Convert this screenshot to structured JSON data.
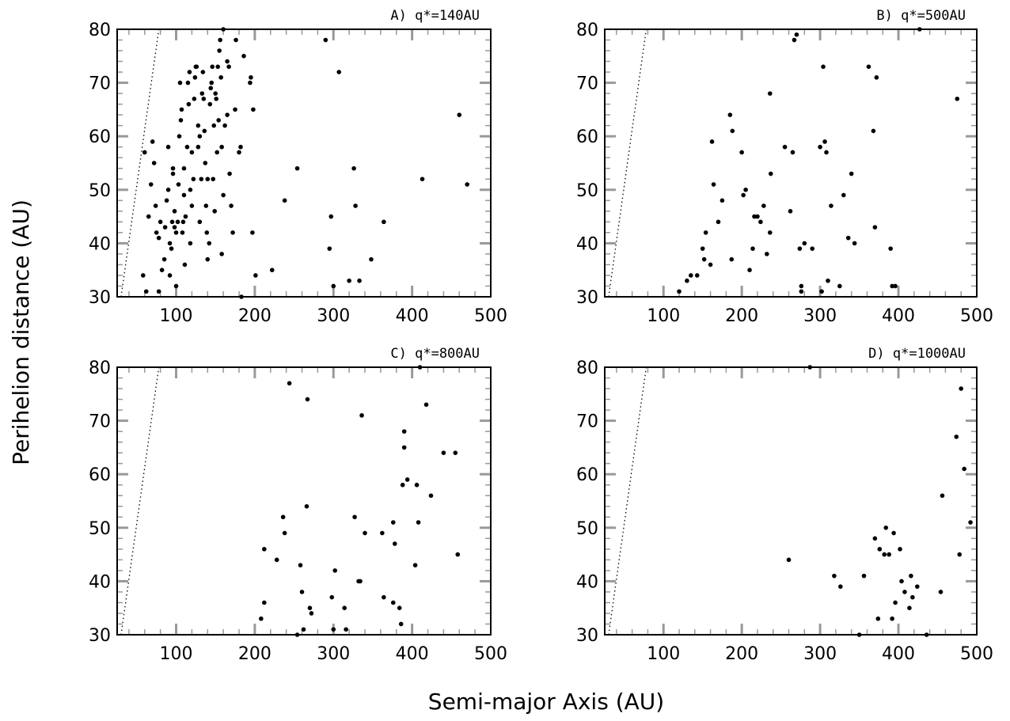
{
  "xlabel": "Semi-major Axis (AU)",
  "ylabel": "Perihelion distance (AU)",
  "chart_data": [
    {
      "type": "scatter",
      "title": "A) q*=140AU",
      "xlim": [
        25,
        500
      ],
      "ylim": [
        30,
        80
      ],
      "xticks": [
        "100",
        "200",
        "300",
        "400",
        "500"
      ],
      "yticks": [
        "30",
        "40",
        "50",
        "60",
        "70",
        "80"
      ],
      "reference_line": [
        [
          30,
          30
        ],
        [
          78,
          80
        ]
      ],
      "points": [
        [
          60,
          57
        ],
        [
          58,
          34
        ],
        [
          62,
          31
        ],
        [
          65,
          45
        ],
        [
          68,
          51
        ],
        [
          72,
          55
        ],
        [
          70,
          59
        ],
        [
          75,
          42
        ],
        [
          74,
          47
        ],
        [
          78,
          41
        ],
        [
          80,
          44
        ],
        [
          78,
          31
        ],
        [
          82,
          35
        ],
        [
          85,
          37
        ],
        [
          86,
          43
        ],
        [
          88,
          48
        ],
        [
          90,
          50
        ],
        [
          90,
          58
        ],
        [
          92,
          40
        ],
        [
          92,
          34
        ],
        [
          94,
          39
        ],
        [
          95,
          44
        ],
        [
          96,
          54
        ],
        [
          96,
          53
        ],
        [
          98,
          43
        ],
        [
          98,
          46
        ],
        [
          100,
          42
        ],
        [
          100,
          32
        ],
        [
          102,
          44
        ],
        [
          103,
          51
        ],
        [
          104,
          60
        ],
        [
          105,
          70
        ],
        [
          106,
          63
        ],
        [
          107,
          65
        ],
        [
          108,
          42
        ],
        [
          109,
          44
        ],
        [
          110,
          49
        ],
        [
          110,
          54
        ],
        [
          111,
          36
        ],
        [
          112,
          45
        ],
        [
          114,
          58
        ],
        [
          115,
          70
        ],
        [
          116,
          66
        ],
        [
          117,
          72
        ],
        [
          118,
          50
        ],
        [
          118,
          40
        ],
        [
          120,
          47
        ],
        [
          120,
          57
        ],
        [
          122,
          52
        ],
        [
          123,
          67
        ],
        [
          124,
          71
        ],
        [
          125,
          73
        ],
        [
          126,
          73
        ],
        [
          128,
          58
        ],
        [
          128,
          62
        ],
        [
          130,
          60
        ],
        [
          130,
          44
        ],
        [
          132,
          52
        ],
        [
          133,
          68
        ],
        [
          134,
          72
        ],
        [
          135,
          67
        ],
        [
          136,
          61
        ],
        [
          137,
          55
        ],
        [
          138,
          47
        ],
        [
          139,
          42
        ],
        [
          140,
          52
        ],
        [
          140,
          37
        ],
        [
          142,
          40
        ],
        [
          143,
          66
        ],
        [
          144,
          69
        ],
        [
          145,
          70
        ],
        [
          146,
          73
        ],
        [
          147,
          52
        ],
        [
          148,
          62
        ],
        [
          149,
          46
        ],
        [
          150,
          68
        ],
        [
          151,
          67
        ],
        [
          152,
          57
        ],
        [
          153,
          73
        ],
        [
          154,
          63
        ],
        [
          155,
          76
        ],
        [
          156,
          78
        ],
        [
          157,
          71
        ],
        [
          158,
          58
        ],
        [
          158,
          38
        ],
        [
          160,
          80
        ],
        [
          160,
          49
        ],
        [
          162,
          62
        ],
        [
          165,
          74
        ],
        [
          165,
          64
        ],
        [
          167,
          73
        ],
        [
          168,
          53
        ],
        [
          170,
          47
        ],
        [
          172,
          42
        ],
        [
          175,
          65
        ],
        [
          176,
          78
        ],
        [
          180,
          57
        ],
        [
          182,
          58
        ],
        [
          183,
          30
        ],
        [
          186,
          75
        ],
        [
          194,
          70
        ],
        [
          195,
          71
        ],
        [
          197,
          42
        ],
        [
          198,
          65
        ],
        [
          201,
          34
        ],
        [
          222,
          35
        ],
        [
          238,
          48
        ],
        [
          254,
          54
        ],
        [
          290,
          78
        ],
        [
          295,
          39
        ],
        [
          297,
          45
        ],
        [
          300,
          32
        ],
        [
          307,
          72
        ],
        [
          320,
          33
        ],
        [
          326,
          54
        ],
        [
          328,
          47
        ],
        [
          333,
          33
        ],
        [
          348,
          37
        ],
        [
          364,
          44
        ],
        [
          413,
          52
        ],
        [
          460,
          64
        ],
        [
          470,
          51
        ]
      ]
    },
    {
      "type": "scatter",
      "title": "B) q*=500AU",
      "xlim": [
        25,
        500
      ],
      "ylim": [
        30,
        80
      ],
      "xticks": [
        "100",
        "200",
        "300",
        "400",
        "500"
      ],
      "yticks": [
        "30",
        "40",
        "50",
        "60",
        "70",
        "80"
      ],
      "reference_line": [
        [
          30,
          30
        ],
        [
          78,
          80
        ]
      ],
      "points": [
        [
          120,
          31
        ],
        [
          130,
          33
        ],
        [
          135,
          34
        ],
        [
          143,
          34
        ],
        [
          150,
          39
        ],
        [
          152,
          37
        ],
        [
          154,
          42
        ],
        [
          160,
          36
        ],
        [
          162,
          59
        ],
        [
          164,
          51
        ],
        [
          170,
          44
        ],
        [
          175,
          48
        ],
        [
          185,
          64
        ],
        [
          188,
          61
        ],
        [
          187,
          37
        ],
        [
          200,
          57
        ],
        [
          202,
          49
        ],
        [
          205,
          50
        ],
        [
          210,
          35
        ],
        [
          214,
          39
        ],
        [
          216,
          45
        ],
        [
          220,
          45
        ],
        [
          224,
          44
        ],
        [
          228,
          47
        ],
        [
          232,
          38
        ],
        [
          236,
          42
        ],
        [
          236,
          68
        ],
        [
          237,
          53
        ],
        [
          255,
          58
        ],
        [
          262,
          46
        ],
        [
          265,
          57
        ],
        [
          267,
          78
        ],
        [
          270,
          79
        ],
        [
          274,
          39
        ],
        [
          276,
          32
        ],
        [
          276,
          31
        ],
        [
          280,
          40
        ],
        [
          290,
          39
        ],
        [
          300,
          58
        ],
        [
          302,
          31
        ],
        [
          304,
          73
        ],
        [
          306,
          59
        ],
        [
          308,
          57
        ],
        [
          310,
          33
        ],
        [
          314,
          47
        ],
        [
          325,
          32
        ],
        [
          330,
          49
        ],
        [
          336,
          41
        ],
        [
          340,
          53
        ],
        [
          344,
          40
        ],
        [
          362,
          73
        ],
        [
          368,
          61
        ],
        [
          370,
          43
        ],
        [
          372,
          71
        ],
        [
          390,
          39
        ],
        [
          392,
          32
        ],
        [
          396,
          32
        ],
        [
          427,
          80
        ],
        [
          475,
          67
        ]
      ]
    },
    {
      "type": "scatter",
      "title": "C) q*=800AU",
      "xlim": [
        25,
        500
      ],
      "ylim": [
        30,
        80
      ],
      "xticks": [
        "100",
        "200",
        "300",
        "400",
        "500"
      ],
      "yticks": [
        "30",
        "40",
        "50",
        "60",
        "70",
        "80"
      ],
      "reference_line": [
        [
          30,
          30
        ],
        [
          78,
          80
        ]
      ],
      "points": [
        [
          208,
          33
        ],
        [
          212,
          46
        ],
        [
          212,
          36
        ],
        [
          228,
          44
        ],
        [
          236,
          52
        ],
        [
          238,
          49
        ],
        [
          244,
          77
        ],
        [
          254,
          30
        ],
        [
          258,
          43
        ],
        [
          260,
          38
        ],
        [
          262,
          31
        ],
        [
          266,
          54
        ],
        [
          267,
          74
        ],
        [
          270,
          35
        ],
        [
          272,
          34
        ],
        [
          298,
          37
        ],
        [
          300,
          31
        ],
        [
          302,
          42
        ],
        [
          314,
          35
        ],
        [
          316,
          31
        ],
        [
          327,
          52
        ],
        [
          332,
          40
        ],
        [
          334,
          40
        ],
        [
          336,
          71
        ],
        [
          340,
          49
        ],
        [
          362,
          49
        ],
        [
          364,
          37
        ],
        [
          376,
          36
        ],
        [
          376,
          51
        ],
        [
          378,
          47
        ],
        [
          384,
          35
        ],
        [
          386,
          32
        ],
        [
          388,
          58
        ],
        [
          390,
          65
        ],
        [
          390,
          68
        ],
        [
          394,
          59
        ],
        [
          404,
          43
        ],
        [
          406,
          58
        ],
        [
          408,
          51
        ],
        [
          410,
          80
        ],
        [
          418,
          73
        ],
        [
          424,
          56
        ],
        [
          440,
          64
        ],
        [
          455,
          64
        ],
        [
          458,
          45
        ]
      ]
    },
    {
      "type": "scatter",
      "title": "D) q*=1000AU",
      "xlim": [
        25,
        500
      ],
      "ylim": [
        30,
        80
      ],
      "xticks": [
        "100",
        "200",
        "300",
        "400",
        "500"
      ],
      "yticks": [
        "30",
        "40",
        "50",
        "60",
        "70",
        "80"
      ],
      "reference_line": [
        [
          30,
          30
        ],
        [
          78,
          80
        ]
      ],
      "points": [
        [
          260,
          44
        ],
        [
          287,
          80
        ],
        [
          318,
          41
        ],
        [
          326,
          39
        ],
        [
          350,
          30
        ],
        [
          356,
          41
        ],
        [
          370,
          48
        ],
        [
          374,
          33
        ],
        [
          376,
          46
        ],
        [
          382,
          45
        ],
        [
          384,
          50
        ],
        [
          388,
          45
        ],
        [
          392,
          33
        ],
        [
          394,
          49
        ],
        [
          396,
          36
        ],
        [
          402,
          46
        ],
        [
          404,
          40
        ],
        [
          408,
          38
        ],
        [
          414,
          35
        ],
        [
          416,
          41
        ],
        [
          418,
          37
        ],
        [
          424,
          39
        ],
        [
          436,
          30
        ],
        [
          454,
          38
        ],
        [
          456,
          56
        ],
        [
          474,
          67
        ],
        [
          478,
          45
        ],
        [
          480,
          76
        ],
        [
          484,
          61
        ],
        [
          492,
          51
        ]
      ]
    }
  ]
}
